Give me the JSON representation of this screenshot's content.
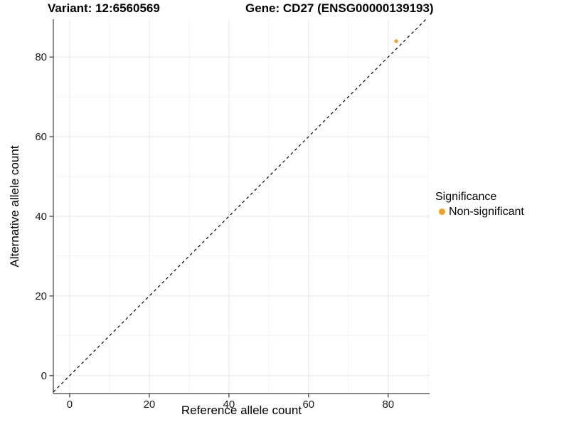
{
  "chart_data": {
    "type": "scatter",
    "titles": {
      "left": "Variant: 12:6560569",
      "right": "Gene: CD27 (ENSG00000139193)"
    },
    "xlabel": "Reference allele count",
    "ylabel": "Alternative allele count",
    "xlim": [
      -4.1,
      90.4
    ],
    "ylim": [
      -4.5,
      89.5
    ],
    "x_ticks": [
      0,
      20,
      40,
      60,
      80
    ],
    "y_ticks": [
      0,
      20,
      40,
      60,
      80
    ],
    "x_minor_breaks": [
      10,
      30,
      50,
      70,
      90
    ],
    "y_minor_breaks": [
      10,
      30,
      50,
      70,
      90
    ],
    "grid": "major+minor",
    "points": [
      {
        "x": 82,
        "y": 84,
        "series": "Non-significant"
      }
    ],
    "reference_line": {
      "slope": 1,
      "intercept": 0,
      "style": "dashed"
    },
    "legend": {
      "title": "Significance",
      "position": "right",
      "items": [
        {
          "label": "Non-significant",
          "color": "#F89C25"
        }
      ]
    },
    "colors": {
      "point": "#F89C25",
      "grid_major": "#E6E6E6",
      "grid_minor": "#F2F2F2",
      "axis_line": "#404040",
      "tick": "#333333",
      "tick_label": "#1a1a1a",
      "text": "#000000",
      "reference_line": "#000000",
      "background": "#FFFFFF"
    }
  }
}
